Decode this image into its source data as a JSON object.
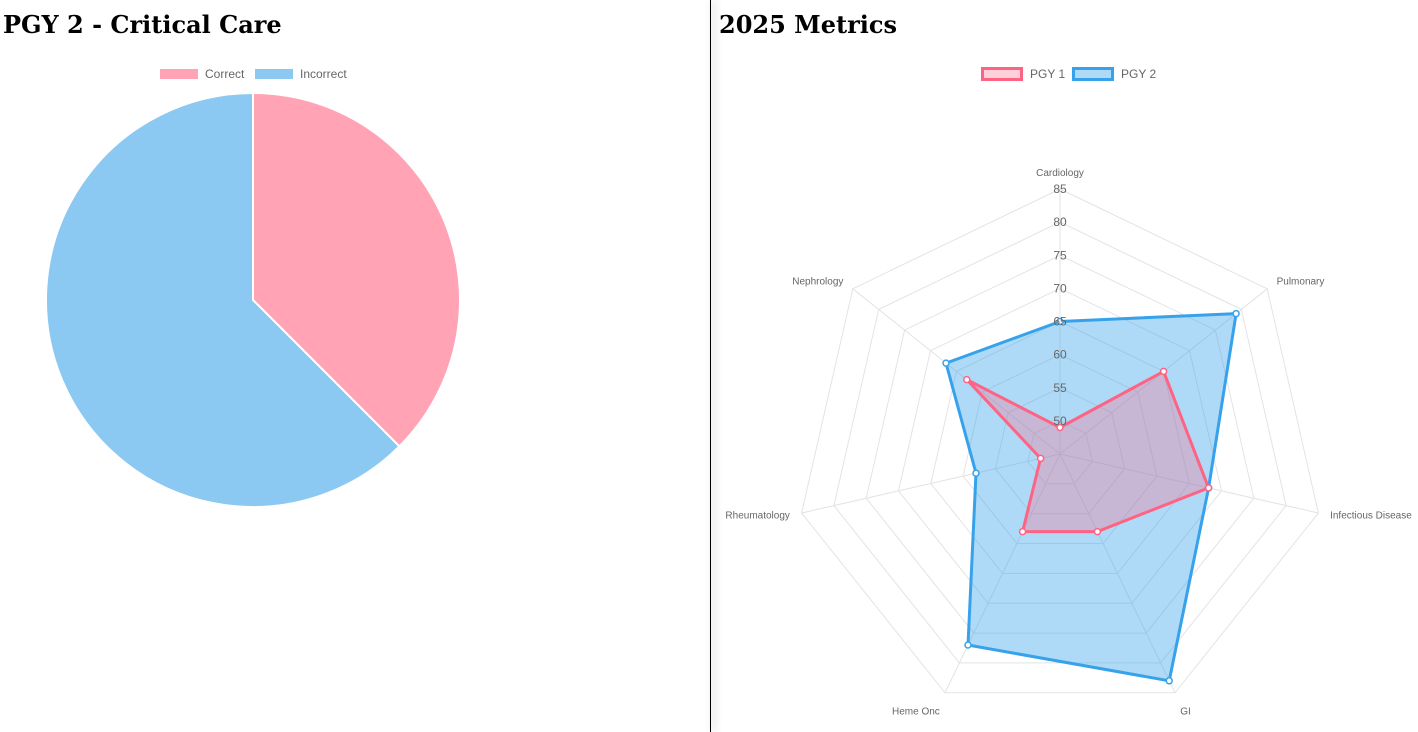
{
  "left_panel": {
    "title": "PGY 2 - Critical Care"
  },
  "right_panel": {
    "title": "2025 Metrics"
  },
  "colors": {
    "pink": "#ff6384",
    "pink_fill": "#ffa3b5",
    "blue": "#36a2eb",
    "blue_fill": "#8bc8f2"
  },
  "chart_data": [
    {
      "type": "pie",
      "title": "",
      "legend": [
        "Correct",
        "Incorrect"
      ],
      "legend_position": "top",
      "slices": [
        {
          "label": "Correct",
          "value": 37.5
        },
        {
          "label": "Incorrect",
          "value": 62.5
        }
      ]
    },
    {
      "type": "radar",
      "title": "",
      "categories": [
        "Cardiology",
        "Pulmonary",
        "Infectious Disease",
        "GI",
        "Heme Onc",
        "Rheumatology",
        "Nephrology"
      ],
      "r_ticks": [
        50,
        55,
        60,
        65,
        70,
        75,
        80,
        85
      ],
      "r_range": [
        45,
        85
      ],
      "legend_position": "top",
      "grid": true,
      "series": [
        {
          "name": "PGY 1",
          "values": [
            49,
            65,
            68,
            58,
            58,
            48,
            63
          ]
        },
        {
          "name": "PGY 2",
          "values": [
            65,
            79,
            68,
            83,
            77,
            58,
            67
          ]
        }
      ]
    }
  ]
}
